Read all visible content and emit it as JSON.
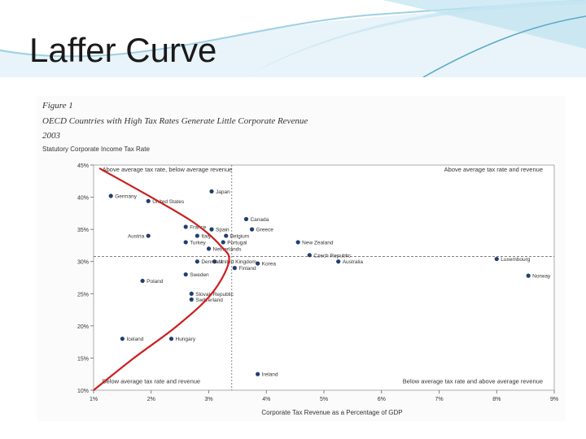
{
  "slide": {
    "title": "Laffer Curve"
  },
  "figure": {
    "label": "Figure 1",
    "caption": "OECD Countries with High Tax Rates Generate Little Corporate Revenue",
    "year": "2003"
  },
  "colors": {
    "curve": "#cc1f1f",
    "points": "#1f3f6e",
    "banner": "#5ba8c8"
  },
  "chart_data": {
    "type": "scatter",
    "ylabel": "Statutory Corporate Income Tax Rate",
    "xlabel": "Corporate Tax Revenue as a Percentage of GDP",
    "xlim": [
      1,
      9
    ],
    "ylim": [
      10,
      45
    ],
    "x_ticks": [
      "1%",
      "2%",
      "3%",
      "4%",
      "5%",
      "6%",
      "7%",
      "8%",
      "9%"
    ],
    "y_ticks": [
      "10%",
      "15%",
      "20%",
      "25%",
      "30%",
      "35%",
      "40%",
      "45%"
    ],
    "reference_lines": {
      "x": 3.4,
      "y": 30.8
    },
    "quadrant_labels": {
      "top_left": "Above average tax rate, below average revenue",
      "top_right": "Above average tax rate and revenue",
      "bottom_left": "Below average tax rate and revenue",
      "bottom_right": "Below average tax rate and above average revenue"
    },
    "points": [
      {
        "label": "Germany",
        "x": 1.3,
        "y": 40.2
      },
      {
        "label": "United States",
        "x": 1.95,
        "y": 39.4
      },
      {
        "label": "Japan",
        "x": 3.05,
        "y": 40.9
      },
      {
        "label": "Canada",
        "x": 3.65,
        "y": 36.6
      },
      {
        "label": "Greece",
        "x": 3.75,
        "y": 35.0
      },
      {
        "label": "France",
        "x": 2.6,
        "y": 35.4
      },
      {
        "label": "Spain",
        "x": 3.05,
        "y": 35.0
      },
      {
        "label": "Austria",
        "x": 1.95,
        "y": 34.0
      },
      {
        "label": "Italy",
        "x": 2.8,
        "y": 34.0
      },
      {
        "label": "Belgium",
        "x": 3.3,
        "y": 34.0
      },
      {
        "label": "Turkey",
        "x": 2.6,
        "y": 33.0
      },
      {
        "label": "Portugal",
        "x": 3.25,
        "y": 33.0
      },
      {
        "label": "Netherlands",
        "x": 3.0,
        "y": 32.0
      },
      {
        "label": "New Zealand",
        "x": 4.55,
        "y": 33.0
      },
      {
        "label": "Czech Republic",
        "x": 4.75,
        "y": 31.0
      },
      {
        "label": "Australia",
        "x": 5.25,
        "y": 30.0
      },
      {
        "label": "Luxembourg",
        "x": 8.0,
        "y": 30.4
      },
      {
        "label": "Norway",
        "x": 8.55,
        "y": 27.8
      },
      {
        "label": "United Kingdom",
        "x": 3.1,
        "y": 30.0
      },
      {
        "label": "Denmark",
        "x": 2.8,
        "y": 30.0
      },
      {
        "label": "Korea",
        "x": 3.85,
        "y": 29.7
      },
      {
        "label": "Finland",
        "x": 3.45,
        "y": 29.0
      },
      {
        "label": "Sweden",
        "x": 2.6,
        "y": 28.0
      },
      {
        "label": "Poland",
        "x": 1.85,
        "y": 27.0
      },
      {
        "label": "Slovak Republic",
        "x": 2.7,
        "y": 25.0
      },
      {
        "label": "Switzerland",
        "x": 2.7,
        "y": 24.1
      },
      {
        "label": "Iceland",
        "x": 1.5,
        "y": 18.0
      },
      {
        "label": "Hungary",
        "x": 2.35,
        "y": 18.0
      },
      {
        "label": "Ireland",
        "x": 3.85,
        "y": 12.5
      }
    ],
    "curve": [
      {
        "x": 1.0,
        "y": 10.0
      },
      {
        "x": 1.7,
        "y": 15.0
      },
      {
        "x": 2.45,
        "y": 20.0
      },
      {
        "x": 3.05,
        "y": 25.0
      },
      {
        "x": 3.35,
        "y": 30.0
      },
      {
        "x": 3.2,
        "y": 32.5
      },
      {
        "x": 2.75,
        "y": 36.0
      },
      {
        "x": 2.0,
        "y": 40.0
      },
      {
        "x": 1.1,
        "y": 44.5
      }
    ]
  }
}
